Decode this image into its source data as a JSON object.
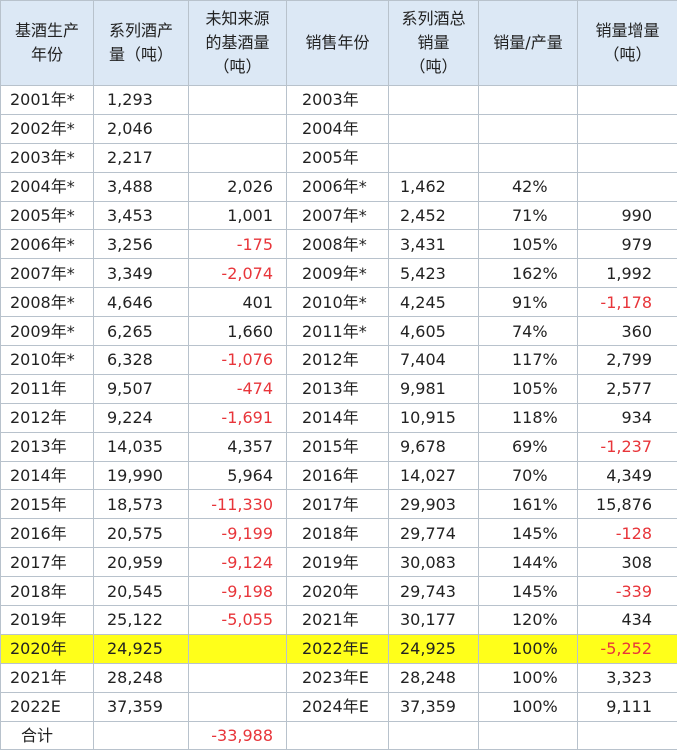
{
  "headers": [
    "基酒生产年份",
    "系列酒产量（吨）",
    "未知来源的基酒量（吨）",
    "销售年份",
    "系列酒总销量（吨）",
    "销量/产量",
    "销量增量（吨）"
  ],
  "rows": [
    {
      "prod_year": "2001年*",
      "output": "1,293",
      "unknown": "",
      "sale_year": "2003年",
      "sales": "",
      "ratio": "",
      "increase": ""
    },
    {
      "prod_year": "2002年*",
      "output": "2,046",
      "unknown": "",
      "sale_year": "2004年",
      "sales": "",
      "ratio": "",
      "increase": ""
    },
    {
      "prod_year": "2003年*",
      "output": "2,217",
      "unknown": "",
      "sale_year": "2005年",
      "sales": "",
      "ratio": "",
      "increase": ""
    },
    {
      "prod_year": "2004年*",
      "output": "3,488",
      "unknown": "2,026",
      "sale_year": "2006年*",
      "sales": "1,462",
      "ratio": "42%",
      "increase": ""
    },
    {
      "prod_year": "2005年*",
      "output": "3,453",
      "unknown": "1,001",
      "sale_year": "2007年*",
      "sales": "2,452",
      "ratio": "71%",
      "increase": "990"
    },
    {
      "prod_year": "2006年*",
      "output": "3,256",
      "unknown": "-175",
      "sale_year": "2008年*",
      "sales": "3,431",
      "ratio": "105%",
      "increase": "979"
    },
    {
      "prod_year": "2007年*",
      "output": "3,349",
      "unknown": "-2,074",
      "sale_year": "2009年*",
      "sales": "5,423",
      "ratio": "162%",
      "increase": "1,992"
    },
    {
      "prod_year": "2008年*",
      "output": "4,646",
      "unknown": "401",
      "sale_year": "2010年*",
      "sales": "4,245",
      "ratio": "91%",
      "increase": "-1,178"
    },
    {
      "prod_year": "2009年*",
      "output": "6,265",
      "unknown": "1,660",
      "sale_year": "2011年*",
      "sales": "4,605",
      "ratio": "74%",
      "increase": "360"
    },
    {
      "prod_year": "2010年*",
      "output": "6,328",
      "unknown": "-1,076",
      "sale_year": "2012年",
      "sales": "7,404",
      "ratio": "117%",
      "increase": "2,799"
    },
    {
      "prod_year": "2011年",
      "output": "9,507",
      "unknown": "-474",
      "sale_year": "2013年",
      "sales": "9,981",
      "ratio": "105%",
      "increase": "2,577"
    },
    {
      "prod_year": "2012年",
      "output": "9,224",
      "unknown": "-1,691",
      "sale_year": "2014年",
      "sales": "10,915",
      "ratio": "118%",
      "increase": "934"
    },
    {
      "prod_year": "2013年",
      "output": "14,035",
      "unknown": "4,357",
      "sale_year": "2015年",
      "sales": "9,678",
      "ratio": "69%",
      "increase": "-1,237"
    },
    {
      "prod_year": "2014年",
      "output": "19,990",
      "unknown": "5,964",
      "sale_year": "2016年",
      "sales": "14,027",
      "ratio": "70%",
      "increase": "4,349"
    },
    {
      "prod_year": "2015年",
      "output": "18,573",
      "unknown": "-11,330",
      "sale_year": "2017年",
      "sales": "29,903",
      "ratio": "161%",
      "increase": "15,876"
    },
    {
      "prod_year": "2016年",
      "output": "20,575",
      "unknown": "-9,199",
      "sale_year": "2018年",
      "sales": "29,774",
      "ratio": "145%",
      "increase": "-128"
    },
    {
      "prod_year": "2017年",
      "output": "20,959",
      "unknown": "-9,124",
      "sale_year": "2019年",
      "sales": "30,083",
      "ratio": "144%",
      "increase": "308"
    },
    {
      "prod_year": "2018年",
      "output": "20,545",
      "unknown": "-9,198",
      "sale_year": "2020年",
      "sales": "29,743",
      "ratio": "145%",
      "increase": "-339"
    },
    {
      "prod_year": "2019年",
      "output": "25,122",
      "unknown": "-5,055",
      "sale_year": "2021年",
      "sales": "30,177",
      "ratio": "120%",
      "increase": "434"
    },
    {
      "prod_year": "2020年",
      "output": "24,925",
      "unknown": "",
      "sale_year": "2022年E",
      "sales": "24,925",
      "ratio": "100%",
      "increase": "-5,252",
      "highlight": true
    },
    {
      "prod_year": "2021年",
      "output": "28,248",
      "unknown": "",
      "sale_year": "2023年E",
      "sales": "28,248",
      "ratio": "100%",
      "increase": "3,323"
    },
    {
      "prod_year": "2022E",
      "output": "37,359",
      "unknown": "",
      "sale_year": "2024年E",
      "sales": "37,359",
      "ratio": "100%",
      "increase": "9,111"
    }
  ],
  "total": {
    "label": "合计",
    "unknown": "-33,988"
  },
  "colors": {
    "header_bg": "#dce8f5",
    "negative": "#e8353a",
    "highlight": "#ffff1a",
    "border": "#b8c2cc"
  }
}
